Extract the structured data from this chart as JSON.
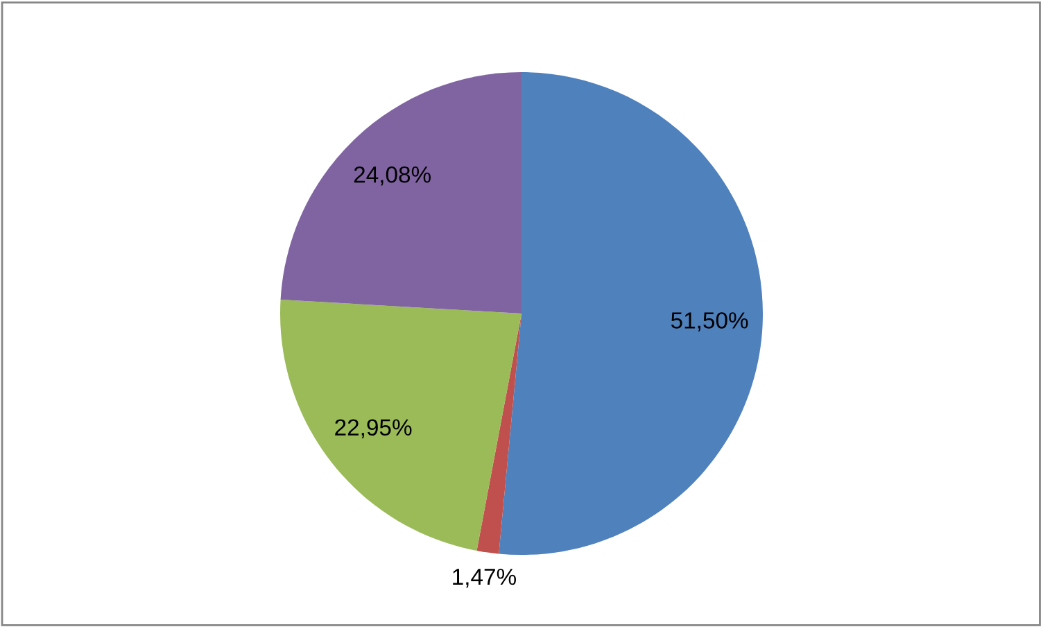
{
  "chart_data": {
    "type": "pie",
    "categories": [
      null,
      null,
      null,
      null
    ],
    "values": [
      51.5,
      1.47,
      22.95,
      24.08
    ],
    "colors": [
      "#4f81bd",
      "#c0504d",
      "#9bbb59",
      "#8064a2"
    ],
    "value_labels": [
      "51,50%",
      "1,47%",
      "22,95%",
      "24,08%"
    ],
    "legend": false
  }
}
